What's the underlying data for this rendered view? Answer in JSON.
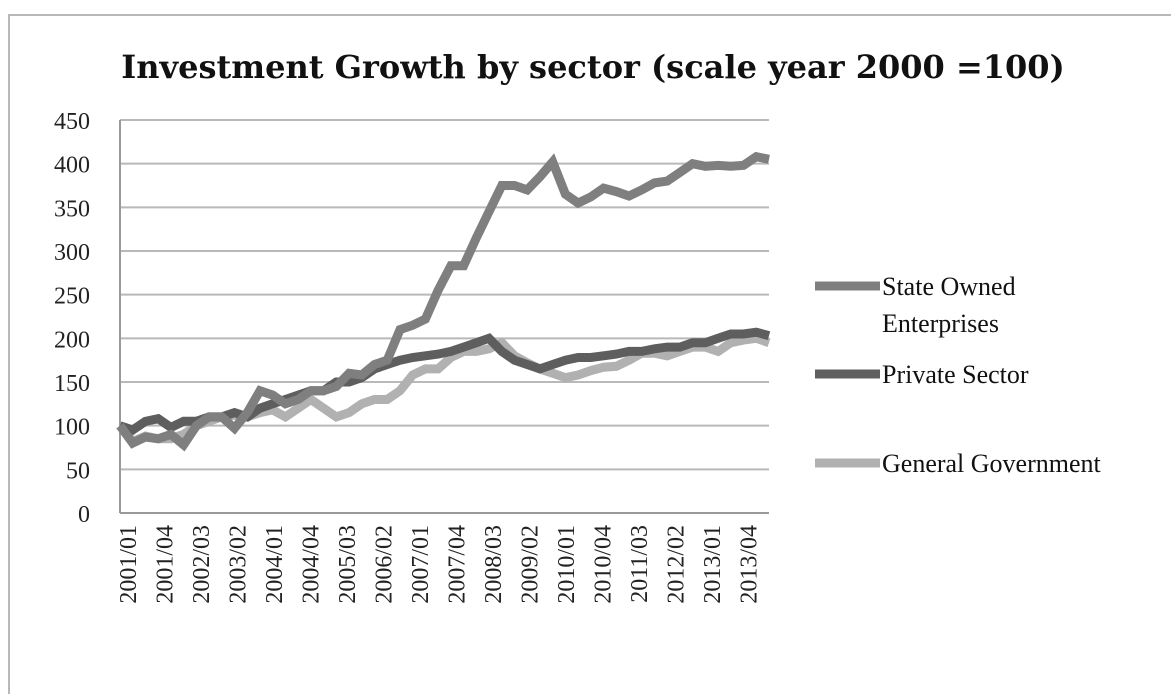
{
  "chart_data": {
    "type": "line",
    "title": "Investment Growth by sector (scale year 2000 =100)",
    "xlabel": "",
    "ylabel": "",
    "ylim": [
      0,
      450
    ],
    "yticks": [
      0,
      50,
      100,
      150,
      200,
      250,
      300,
      350,
      400,
      450
    ],
    "grid": true,
    "legend_position": "right",
    "x_tick_labels": [
      "2001/01",
      "2001/04",
      "2002/03",
      "2003/02",
      "2004/01",
      "2004/04",
      "2005/03",
      "2006/02",
      "2007/01",
      "2007/04",
      "2008/03",
      "2009/02",
      "2010/01",
      "2010/04",
      "2011/03",
      "2012/02",
      "2013/01",
      "2013/04"
    ],
    "series": [
      {
        "name": "State Owned Enterprises",
        "color": "#7f7f7f",
        "values": [
          100,
          80,
          87,
          85,
          90,
          78,
          100,
          110,
          110,
          97,
          115,
          140,
          135,
          125,
          130,
          140,
          140,
          145,
          160,
          158,
          170,
          175,
          210,
          215,
          222,
          255,
          283,
          283,
          315,
          345,
          375,
          375,
          370,
          385,
          402,
          365,
          355,
          362,
          372,
          368,
          363,
          370,
          378,
          380,
          390,
          400,
          397,
          398,
          397,
          398,
          408,
          405
        ]
      },
      {
        "name": "Private Sector",
        "color": "#5e5e5e",
        "values": [
          100,
          95,
          105,
          108,
          98,
          105,
          105,
          110,
          110,
          115,
          110,
          120,
          125,
          130,
          135,
          140,
          140,
          150,
          150,
          155,
          165,
          170,
          175,
          178,
          180,
          182,
          185,
          190,
          195,
          200,
          185,
          175,
          170,
          165,
          170,
          175,
          178,
          178,
          180,
          182,
          185,
          185,
          188,
          190,
          190,
          195,
          195,
          200,
          205,
          205,
          207,
          203
        ]
      },
      {
        "name": "General Government",
        "color": "#b1b1b1",
        "values": [
          100,
          82,
          88,
          85,
          85,
          90,
          100,
          105,
          110,
          112,
          110,
          115,
          118,
          110,
          120,
          130,
          120,
          110,
          115,
          125,
          130,
          130,
          140,
          158,
          165,
          165,
          178,
          185,
          185,
          188,
          195,
          180,
          172,
          165,
          160,
          155,
          158,
          163,
          167,
          168,
          175,
          183,
          183,
          180,
          185,
          190,
          190,
          185,
          195,
          198,
          200,
          195
        ]
      }
    ]
  }
}
